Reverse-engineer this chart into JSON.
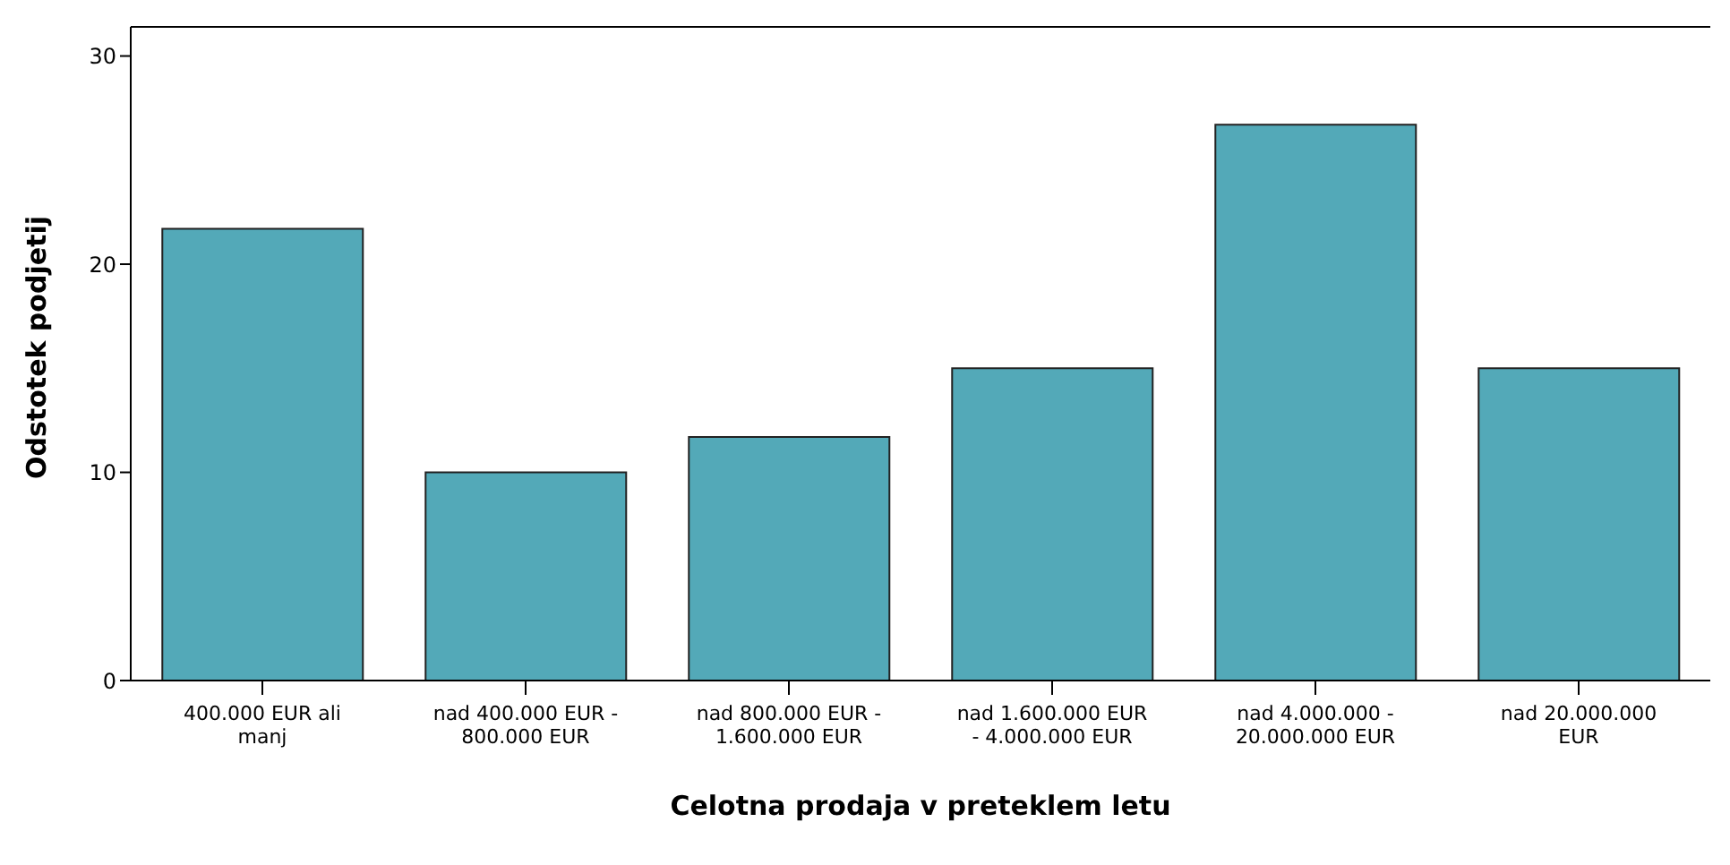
{
  "chart_data": {
    "type": "bar",
    "xlabel": "Celotna prodaja v preteklem letu",
    "ylabel": "Odstotek podjetij",
    "categories": [
      "400.000 EUR ali manj",
      "nad 400.000 EUR - 800.000 EUR",
      "nad 800.000 EUR - 1.600.000 EUR",
      "nad 1.600.000 EUR - 4.000.000 EUR",
      "nad 4.000.000 - 20.000.000 EUR",
      "nad 20.000.000 EUR"
    ],
    "values": [
      21.7,
      10.0,
      11.7,
      15.0,
      26.7,
      15.0
    ],
    "color": "#53a9b8",
    "ylim": [
      0,
      31.4
    ],
    "yticks": [
      0,
      10,
      20,
      30
    ],
    "grid": false,
    "legend": false
  }
}
